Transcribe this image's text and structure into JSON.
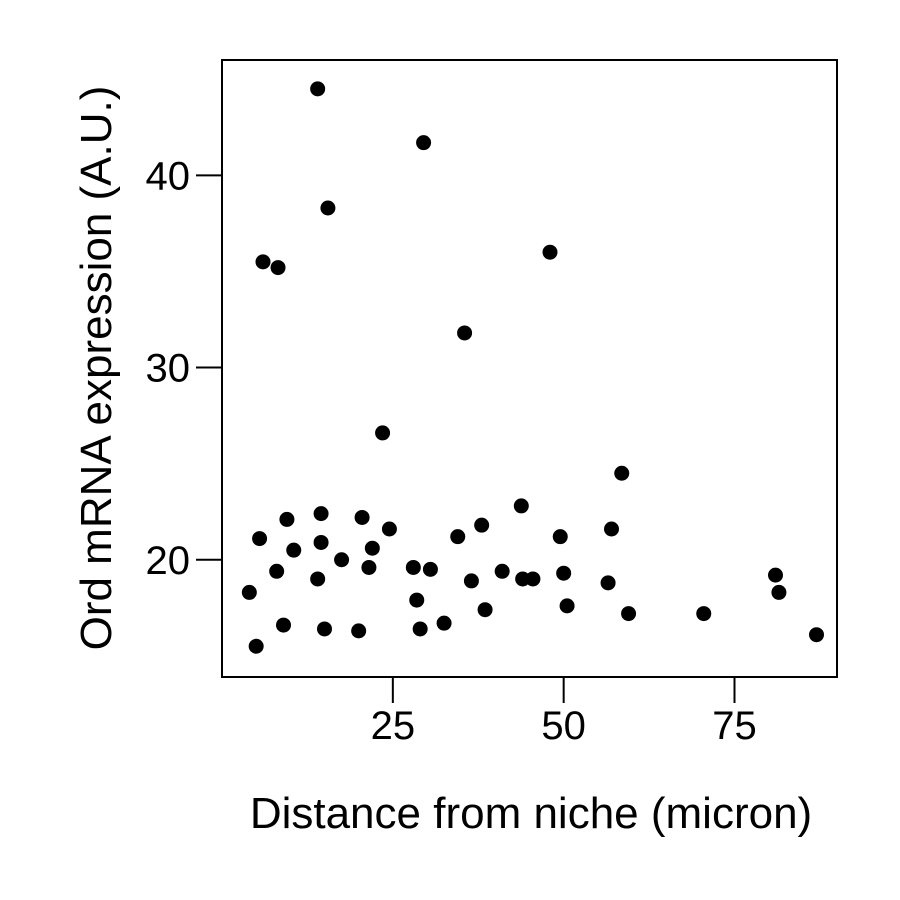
{
  "chart_data": {
    "type": "scatter",
    "title": "",
    "xlabel": "Distance from niche (micron)",
    "ylabel": "Ord mRNA expression (A.U.)",
    "xlim": [
      0,
      90
    ],
    "ylim": [
      13.9,
      46.0
    ],
    "xticks": [
      25,
      50,
      75
    ],
    "yticks": [
      20,
      30,
      40
    ],
    "grid": false,
    "legend": "none",
    "point_color": "#000000",
    "series": [
      {
        "points": [
          [
            4.0,
            18.3
          ],
          [
            5.0,
            15.5
          ],
          [
            5.5,
            21.1
          ],
          [
            6.0,
            35.5
          ],
          [
            8.0,
            19.4
          ],
          [
            8.2,
            35.2
          ],
          [
            9.0,
            16.6
          ],
          [
            9.5,
            22.1
          ],
          [
            10.5,
            20.5
          ],
          [
            14.0,
            44.5
          ],
          [
            14.0,
            19.0
          ],
          [
            14.5,
            22.4
          ],
          [
            14.5,
            20.9
          ],
          [
            15.0,
            16.4
          ],
          [
            15.5,
            38.3
          ],
          [
            17.5,
            20.0
          ],
          [
            20.0,
            16.3
          ],
          [
            20.5,
            22.2
          ],
          [
            21.5,
            19.6
          ],
          [
            22.0,
            20.6
          ],
          [
            23.5,
            26.6
          ],
          [
            24.5,
            21.6
          ],
          [
            28.0,
            19.6
          ],
          [
            28.5,
            17.9
          ],
          [
            29.0,
            16.4
          ],
          [
            29.5,
            41.7
          ],
          [
            30.5,
            19.5
          ],
          [
            32.5,
            16.7
          ],
          [
            34.5,
            21.2
          ],
          [
            35.5,
            31.8
          ],
          [
            36.5,
            18.9
          ],
          [
            38.0,
            21.8
          ],
          [
            38.5,
            17.4
          ],
          [
            41.0,
            19.4
          ],
          [
            43.8,
            22.8
          ],
          [
            44.0,
            19.0
          ],
          [
            45.5,
            19.0
          ],
          [
            48.0,
            36.0
          ],
          [
            49.5,
            21.2
          ],
          [
            50.0,
            19.3
          ],
          [
            50.5,
            17.6
          ],
          [
            56.5,
            18.8
          ],
          [
            57.0,
            21.6
          ],
          [
            58.5,
            24.5
          ],
          [
            59.5,
            17.2
          ],
          [
            70.5,
            17.2
          ],
          [
            81.0,
            19.2
          ],
          [
            81.5,
            18.3
          ],
          [
            87.0,
            16.1
          ]
        ]
      }
    ]
  }
}
